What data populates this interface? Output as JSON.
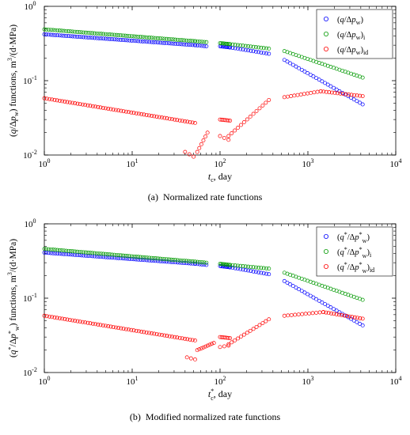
{
  "chart_data": [
    {
      "type": "scatter",
      "panel_label": "(a)",
      "caption": "Normalized rate functions",
      "xlabel": "t_c, day",
      "ylabel": "(q/Δp_w) functions, m^3/(d·MPa)",
      "xscale": "log",
      "yscale": "log",
      "xlim": [
        1,
        10000
      ],
      "ylim": [
        0.01,
        1
      ],
      "x_ticks": [
        "10^0",
        "10^1",
        "10^2",
        "10^3",
        "10^4"
      ],
      "y_ticks": [
        "10^-2",
        "10^-1",
        "10^0"
      ],
      "legend_position": "top-right",
      "series": [
        {
          "name": "(q/Δp_w)",
          "color": "#0000ff",
          "segments": [
            {
              "x0": 1,
              "x1": 52,
              "y0": 0.42,
              "y1": 0.3,
              "n": 70
            },
            {
              "x0": 52,
              "x1": 70,
              "y0": 0.3,
              "y1": 0.29,
              "n": 6
            },
            {
              "x0": 100,
              "x1": 130,
              "y0": 0.29,
              "y1": 0.28,
              "n": 9
            },
            {
              "x0": 130,
              "x1": 360,
              "y0": 0.28,
              "y1": 0.23,
              "n": 16
            },
            {
              "x0": 540,
              "x1": 4200,
              "y0": 0.19,
              "y1": 0.048,
              "n": 28
            }
          ]
        },
        {
          "name": "(q/Δp_w)_i",
          "color": "#009900",
          "segments": [
            {
              "x0": 1,
              "x1": 52,
              "y0": 0.49,
              "y1": 0.34,
              "n": 70
            },
            {
              "x0": 52,
              "x1": 70,
              "y0": 0.34,
              "y1": 0.33,
              "n": 6
            },
            {
              "x0": 100,
              "x1": 130,
              "y0": 0.32,
              "y1": 0.31,
              "n": 9
            },
            {
              "x0": 130,
              "x1": 360,
              "y0": 0.31,
              "y1": 0.27,
              "n": 16
            },
            {
              "x0": 540,
              "x1": 4200,
              "y0": 0.25,
              "y1": 0.11,
              "n": 28
            }
          ]
        },
        {
          "name": "(q/Δp_w)_id",
          "color": "#ff0000",
          "segments": [
            {
              "x0": 1,
              "x1": 52,
              "y0": 0.058,
              "y1": 0.027,
              "n": 60
            },
            {
              "x0": 40,
              "x1": 50,
              "y0": 0.011,
              "y1": 0.0095,
              "n": 3
            },
            {
              "x0": 55,
              "x1": 72,
              "y0": 0.011,
              "y1": 0.02,
              "n": 6
            },
            {
              "x0": 100,
              "x1": 130,
              "y0": 0.03,
              "y1": 0.029,
              "n": 7
            },
            {
              "x0": 100,
              "x1": 125,
              "y0": 0.018,
              "y1": 0.016,
              "n": 3
            },
            {
              "x0": 125,
              "x1": 360,
              "y0": 0.018,
              "y1": 0.055,
              "n": 14
            },
            {
              "x0": 540,
              "x1": 1400,
              "y0": 0.06,
              "y1": 0.072,
              "n": 12
            },
            {
              "x0": 1400,
              "x1": 4200,
              "y0": 0.072,
              "y1": 0.062,
              "n": 16
            }
          ]
        }
      ]
    },
    {
      "type": "scatter",
      "panel_label": "(b)",
      "caption": "Modified normalized rate functions",
      "xlabel": "t_c*, day",
      "ylabel": "(q*/Δp_w*) functions, m^3/(d·MPa)",
      "xscale": "log",
      "yscale": "log",
      "xlim": [
        1,
        10000
      ],
      "ylim": [
        0.01,
        1
      ],
      "x_ticks": [
        "10^0",
        "10^1",
        "10^2",
        "10^3",
        "10^4"
      ],
      "y_ticks": [
        "10^-2",
        "10^-1",
        "10^0"
      ],
      "legend_position": "top-right",
      "series": [
        {
          "name": "(q*/Δp_w*)",
          "color": "#0000ff",
          "segments": [
            {
              "x0": 1,
              "x1": 52,
              "y0": 0.41,
              "y1": 0.29,
              "n": 70
            },
            {
              "x0": 52,
              "x1": 70,
              "y0": 0.29,
              "y1": 0.28,
              "n": 6
            },
            {
              "x0": 100,
              "x1": 130,
              "y0": 0.27,
              "y1": 0.26,
              "n": 9
            },
            {
              "x0": 130,
              "x1": 360,
              "y0": 0.26,
              "y1": 0.21,
              "n": 16
            },
            {
              "x0": 540,
              "x1": 4200,
              "y0": 0.17,
              "y1": 0.043,
              "n": 28
            }
          ]
        },
        {
          "name": "(q*/Δp_w*)_i",
          "color": "#009900",
          "segments": [
            {
              "x0": 1,
              "x1": 52,
              "y0": 0.46,
              "y1": 0.31,
              "n": 70
            },
            {
              "x0": 52,
              "x1": 70,
              "y0": 0.31,
              "y1": 0.3,
              "n": 6
            },
            {
              "x0": 100,
              "x1": 130,
              "y0": 0.29,
              "y1": 0.28,
              "n": 9
            },
            {
              "x0": 130,
              "x1": 360,
              "y0": 0.28,
              "y1": 0.25,
              "n": 16
            },
            {
              "x0": 540,
              "x1": 4200,
              "y0": 0.22,
              "y1": 0.095,
              "n": 28
            }
          ]
        },
        {
          "name": "(q*/Δp_w*)_id",
          "color": "#ff0000",
          "segments": [
            {
              "x0": 1,
              "x1": 52,
              "y0": 0.058,
              "y1": 0.027,
              "n": 60
            },
            {
              "x0": 42,
              "x1": 52,
              "y0": 0.016,
              "y1": 0.015,
              "n": 3
            },
            {
              "x0": 55,
              "x1": 85,
              "y0": 0.02,
              "y1": 0.025,
              "n": 9
            },
            {
              "x0": 100,
              "x1": 130,
              "y0": 0.03,
              "y1": 0.029,
              "n": 7
            },
            {
              "x0": 100,
              "x1": 125,
              "y0": 0.022,
              "y1": 0.023,
              "n": 3
            },
            {
              "x0": 125,
              "x1": 360,
              "y0": 0.024,
              "y1": 0.052,
              "n": 14
            },
            {
              "x0": 540,
              "x1": 1500,
              "y0": 0.058,
              "y1": 0.065,
              "n": 12
            },
            {
              "x0": 1500,
              "x1": 4200,
              "y0": 0.065,
              "y1": 0.053,
              "n": 16
            }
          ]
        }
      ]
    }
  ]
}
